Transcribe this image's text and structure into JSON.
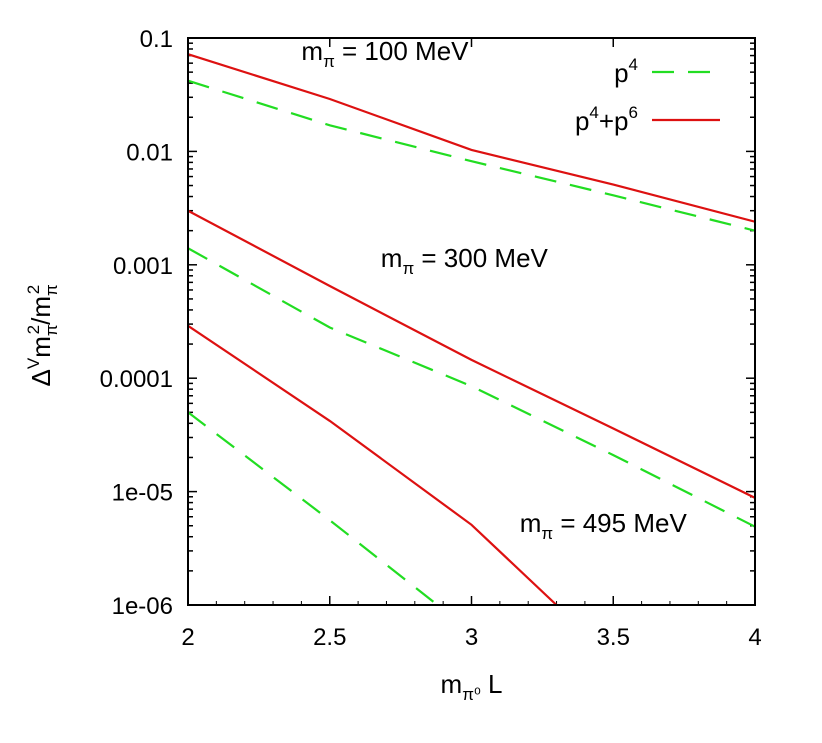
{
  "chart_data": {
    "type": "line",
    "xlabel": {
      "main": "m",
      "sub": "π⁰",
      "after": " L"
    },
    "ylabel": {
      "p1": "Δ",
      "p2": "V",
      "p3": "m",
      "p4": "π",
      "p5": "2",
      "p6": "/m",
      "p7": "π",
      "p8": "2"
    },
    "xlim": [
      2,
      4
    ],
    "ylim": [
      1e-06,
      0.1
    ],
    "yscale": "log",
    "x_ticks": [
      {
        "value": 2,
        "label": "2"
      },
      {
        "value": 2.5,
        "label": "2.5"
      },
      {
        "value": 3,
        "label": "3"
      },
      {
        "value": 3.5,
        "label": "3.5"
      },
      {
        "value": 4,
        "label": "4"
      }
    ],
    "y_ticks": [
      {
        "value": 0.1,
        "label": "0.1"
      },
      {
        "value": 0.01,
        "label": "0.01"
      },
      {
        "value": 0.001,
        "label": "0.001"
      },
      {
        "value": 0.0001,
        "label": "0.0001"
      },
      {
        "value": 1e-05,
        "label": "1e-05"
      },
      {
        "value": 1e-06,
        "label": "1e-06"
      }
    ],
    "legend": {
      "position": "top-right",
      "entries": [
        {
          "series": "p4",
          "base": "p",
          "exp": "4"
        },
        {
          "series": "p4p6",
          "base": "p",
          "exp": "4",
          "mid": "+p",
          "exp2": "6"
        }
      ]
    },
    "annotations": [
      {
        "id": "mpi100",
        "x": 2.4,
        "y": 0.064,
        "m": "m",
        "sub": "π",
        "text": " = 100 MeV"
      },
      {
        "id": "mpi300",
        "x": 2.68,
        "y": 0.00096,
        "m": "m",
        "sub": "π",
        "text": " = 300 MeV"
      },
      {
        "id": "mpi495",
        "x": 3.17,
        "y": 4.4e-06,
        "m": "m",
        "sub": "π",
        "text": " = 495 MeV"
      }
    ],
    "series": [
      {
        "id": "p4-100",
        "legend": "p4",
        "color": "#22dd22",
        "dashed": true,
        "x": [
          2,
          2.5,
          3,
          3.5,
          4
        ],
        "y": [
          0.042,
          0.017,
          0.0082,
          0.0041,
          0.002
        ]
      },
      {
        "id": "p4p6-100",
        "legend": "p4p6",
        "color": "#dd1111",
        "dashed": false,
        "x": [
          2,
          2.5,
          3,
          3.5,
          4
        ],
        "y": [
          0.072,
          0.029,
          0.0103,
          0.0051,
          0.0024
        ]
      },
      {
        "id": "p4-300",
        "legend": "p4",
        "color": "#22dd22",
        "dashed": true,
        "x": [
          2,
          2.5,
          3,
          3.5,
          4
        ],
        "y": [
          0.0014,
          0.00028,
          8.5e-05,
          2.1e-05,
          4.9e-06
        ]
      },
      {
        "id": "p4p6-300",
        "legend": "p4p6",
        "color": "#dd1111",
        "dashed": false,
        "x": [
          2,
          2.5,
          3,
          3.5,
          4
        ],
        "y": [
          0.003,
          0.00065,
          0.000145,
          3.6e-05,
          8.8e-06
        ]
      },
      {
        "id": "p4-495",
        "legend": "p4",
        "color": "#22dd22",
        "dashed": true,
        "x": [
          2,
          2.5,
          2.88
        ],
        "y": [
          5e-05,
          5.6e-06,
          1e-06
        ]
      },
      {
        "id": "p4p6-495",
        "legend": "p4p6",
        "color": "#dd1111",
        "dashed": false,
        "x": [
          2,
          2.5,
          3,
          3.3
        ],
        "y": [
          0.00029,
          4.2e-05,
          5.1e-06,
          1e-06
        ]
      }
    ]
  }
}
